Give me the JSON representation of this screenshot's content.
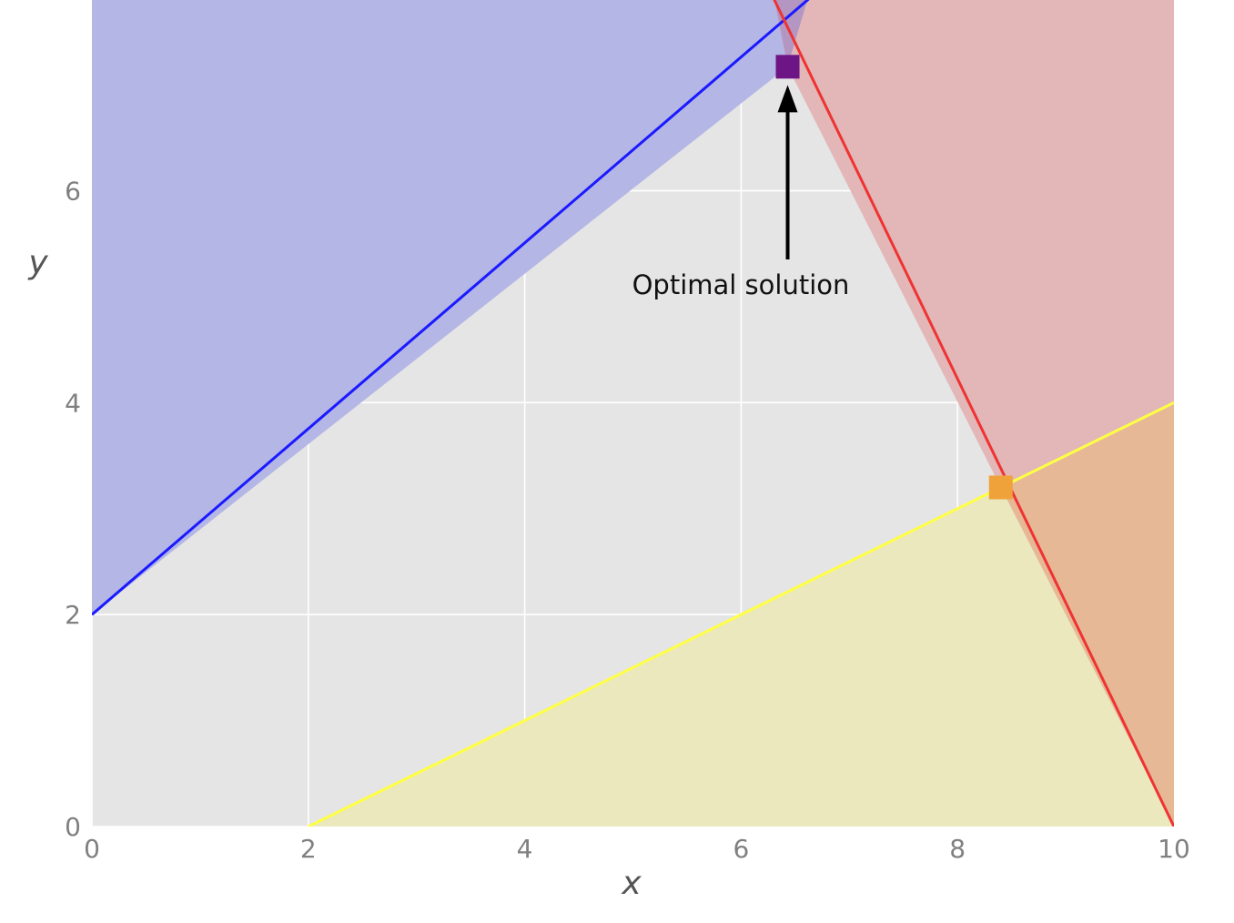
{
  "chart_data": {
    "type": "line",
    "title": "",
    "xlabel": "x",
    "ylabel": "y",
    "xlim": [
      0,
      10
    ],
    "ylim": [
      0,
      7.8
    ],
    "xticks": [
      0,
      2,
      4,
      6,
      8,
      10
    ],
    "yticks": [
      0,
      2,
      4,
      6
    ],
    "grid": true,
    "legend": "none",
    "background_color": "#e5e5e5",
    "grid_color": "#ffffff",
    "constraints": [
      {
        "color": "#1a1aff",
        "fill": "#b4b6e5",
        "points": [
          [
            0,
            2
          ],
          [
            10,
            10.77
          ]
        ],
        "shaded": "above"
      },
      {
        "color": "#ee3333",
        "fill": "#e3b6b7",
        "points": [
          [
            6.0,
            8.45
          ],
          [
            10,
            0
          ]
        ],
        "shaded": "right"
      },
      {
        "color": "#ffff44",
        "fill": "#eae8bc",
        "points": [
          [
            2,
            0
          ],
          [
            10,
            4
          ]
        ],
        "shaded": "below"
      }
    ],
    "overlap_fills": {
      "blue_red": "#b496c2",
      "red_yellow": "#e6b896"
    },
    "markers": [
      {
        "x": 6.43,
        "y": 7.17,
        "color": "#6e1585",
        "shape": "square"
      },
      {
        "x": 8.4,
        "y": 3.2,
        "color": "#f0a23a",
        "shape": "square"
      }
    ],
    "annotation": {
      "text": "Optimal solution",
      "point": [
        6.43,
        7.17
      ],
      "text_anchor": [
        5.0,
        5.0
      ]
    }
  }
}
